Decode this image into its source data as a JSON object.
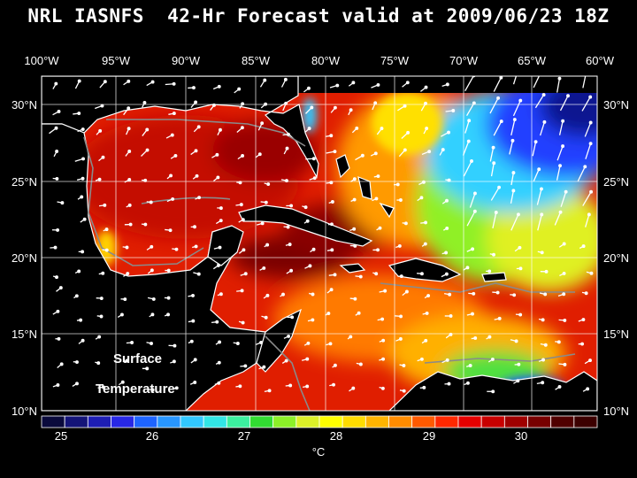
{
  "title": "NRL IASNFS  42-Hr Forecast valid at 2009/06/23 18Z",
  "lon_labels": [
    "100°W",
    "95°W",
    "90°W",
    "85°W",
    "80°W",
    "75°W",
    "70°W",
    "65°W",
    "60°W"
  ],
  "lat_labels": [
    "30°N",
    "25°N",
    "20°N",
    "15°N",
    "10°N"
  ],
  "field_label_line1": "Surface",
  "field_label_line2": "Temperature",
  "colorbar": {
    "tick_labels": [
      "25",
      "26",
      "27",
      "28",
      "29",
      "30"
    ],
    "unit": "°C",
    "colors": [
      "#0a0a3c",
      "#141478",
      "#1e1eb4",
      "#2828e6",
      "#1e64ff",
      "#2896ff",
      "#32c8ff",
      "#32e6e6",
      "#3cf0a0",
      "#32dc32",
      "#8cf028",
      "#dcf028",
      "#ffff00",
      "#ffdc00",
      "#ffb400",
      "#ff8c00",
      "#ff5a00",
      "#ff2800",
      "#e60000",
      "#c80000",
      "#a00000",
      "#780000",
      "#500000",
      "#3c0000"
    ]
  },
  "colors": {
    "background": "#000000",
    "land": "#000000",
    "text": "#ffffff",
    "warm_sea": "#dd1a00",
    "hot_core": "#7a0000",
    "cool_sea": "#1e64ff",
    "mid_sea": "#8cf028"
  }
}
